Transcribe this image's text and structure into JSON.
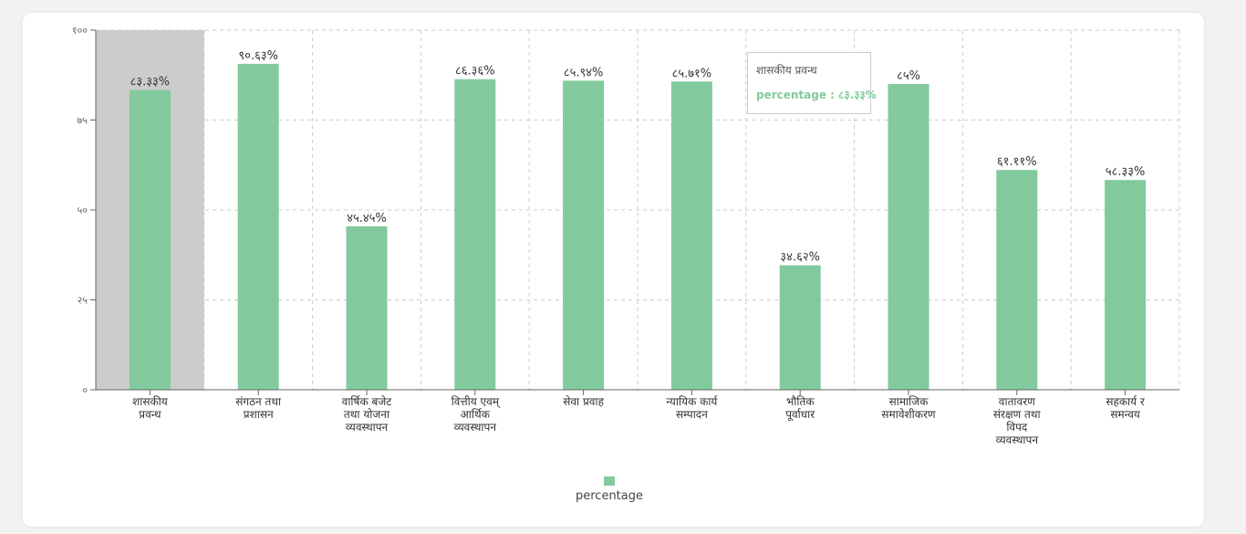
{
  "chart_data": {
    "type": "bar",
    "categories": [
      [
        "शासकीय",
        "प्रवन्ध"
      ],
      [
        "संगठन तथा",
        "प्रशासन"
      ],
      [
        "वार्षिक बजेट",
        "तथा योजना",
        "व्यवस्थापन"
      ],
      [
        "वित्तीय एवम्",
        "आर्थिक",
        "व्यवस्थापन"
      ],
      [
        "सेवा प्रवाह"
      ],
      [
        "न्यायिक कार्य",
        "सम्पादन"
      ],
      [
        "भौतिक",
        "पूर्वाधार"
      ],
      [
        "सामाजिक",
        "समावेशीकरण"
      ],
      [
        "वातावरण",
        "संरक्षण तथा",
        "विपद",
        "व्यवस्थापन"
      ],
      [
        "सहकार्य र",
        "समन्वय"
      ]
    ],
    "values": [
      83.33,
      90.63,
      45.45,
      86.36,
      85.94,
      85.71,
      34.62,
      85,
      61.11,
      58.33
    ],
    "value_labels": [
      "८३.३३%",
      "९०.६३%",
      "४५.४५%",
      "८६.३६%",
      "८५.९४%",
      "८५.७१%",
      "३४.६२%",
      "८५%",
      "६१.११%",
      "५८.३३%"
    ],
    "y_ticks": [
      0,
      25,
      50,
      75,
      100
    ],
    "y_tick_labels": [
      "०",
      "२५",
      "५०",
      "७५",
      "१००"
    ],
    "ylim": [
      0,
      100
    ],
    "grid": true,
    "legend": {
      "position": "bottom",
      "entries": [
        "percentage"
      ]
    },
    "highlighted_index": 0,
    "bar_color": "#82ca9d",
    "highlight_color": "#cccccc"
  },
  "tooltip": {
    "title": "शासकीय प्रवन्ध",
    "value_text": "percentage : ८३.३३%"
  },
  "legend": {
    "label": "percentage"
  }
}
